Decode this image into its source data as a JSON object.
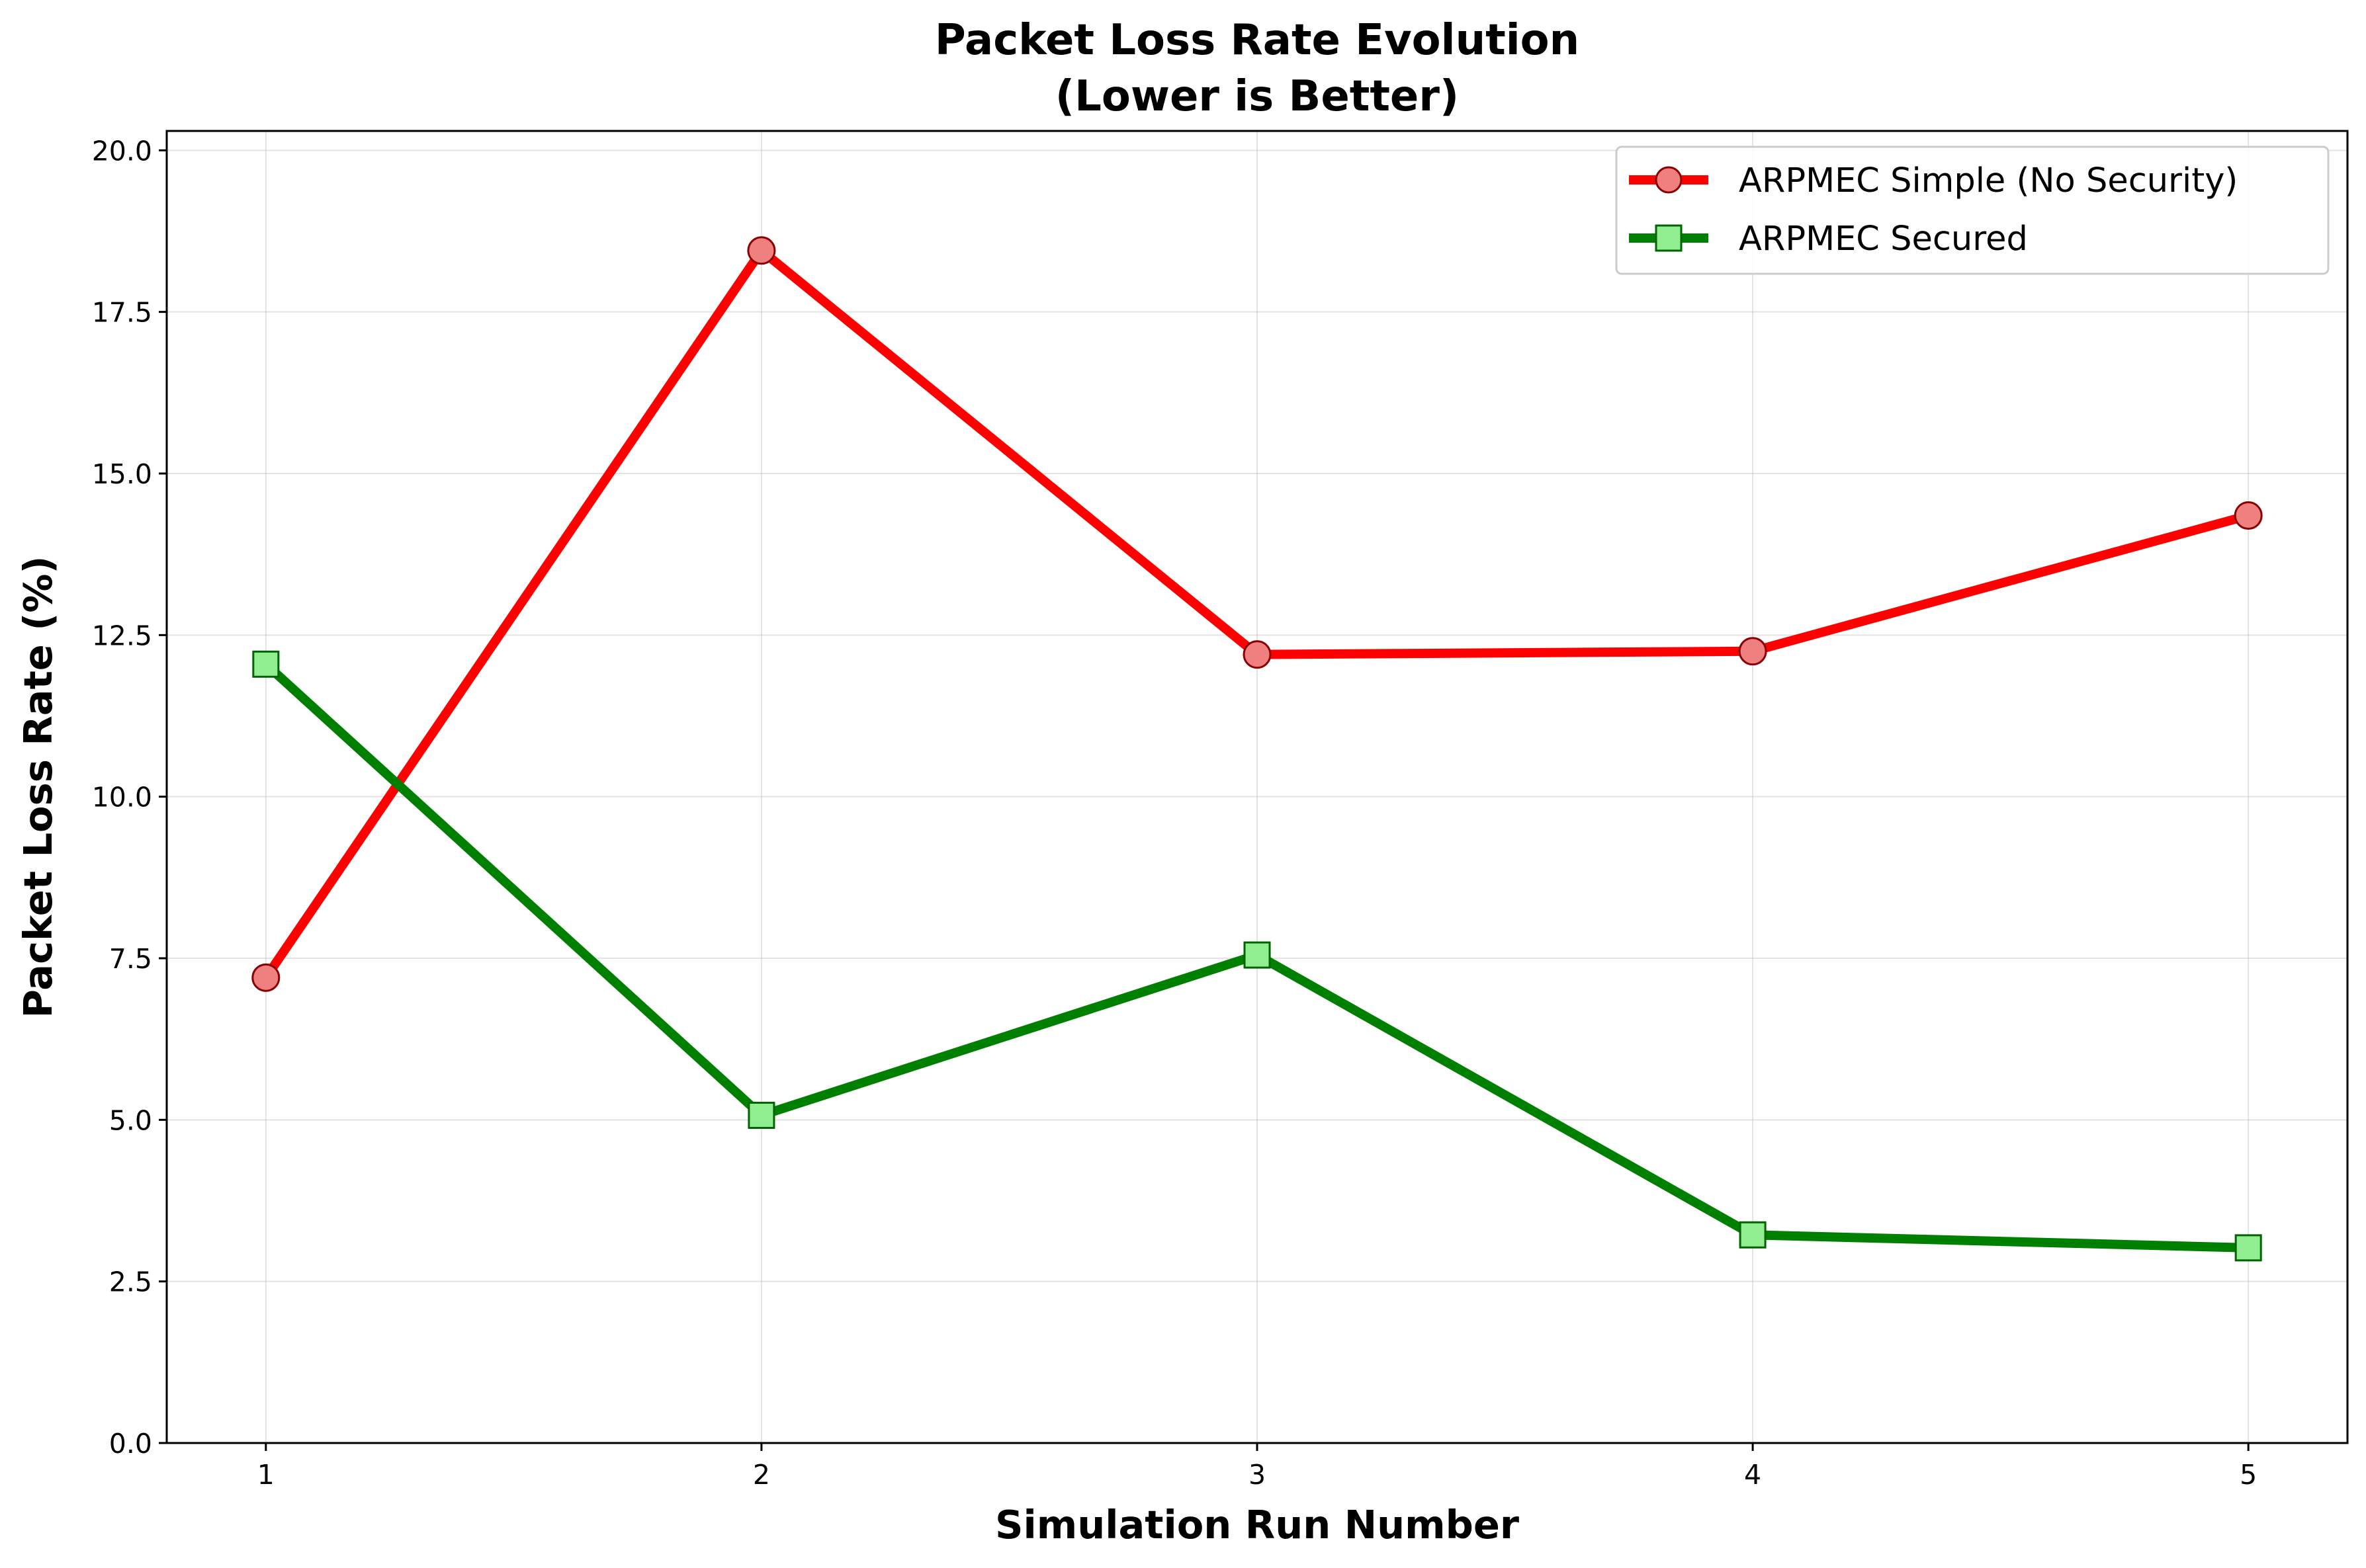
{
  "chart_data": {
    "type": "line",
    "title": "Packet Loss Rate Evolution",
    "subtitle": "(Lower is Better)",
    "xlabel": "Simulation Run Number",
    "ylabel": "Packet Loss Rate (%)",
    "x": [
      1,
      2,
      3,
      4,
      5
    ],
    "x_ticks": [
      "1",
      "2",
      "3",
      "4",
      "5"
    ],
    "xlim": [
      0.8,
      5.2
    ],
    "ylim": [
      0,
      20.3
    ],
    "y_ticks": [
      "0.0",
      "2.5",
      "5.0",
      "7.5",
      "10.0",
      "12.5",
      "15.0",
      "17.5",
      "20.0"
    ],
    "grid": true,
    "legend_position": "top-right",
    "series": [
      {
        "name": "ARPMEC Simple (No Security)",
        "values": [
          7.2,
          18.45,
          12.2,
          12.25,
          14.35
        ],
        "color": "#ff0000",
        "marker": "circle",
        "marker_fill": "#f08080",
        "marker_edge": "#8b0000"
      },
      {
        "name": "ARPMEC Secured",
        "values": [
          12.05,
          5.07,
          7.55,
          3.22,
          3.02
        ],
        "color": "#008000",
        "marker": "square",
        "marker_fill": "#90ee90",
        "marker_edge": "#006400"
      }
    ]
  }
}
